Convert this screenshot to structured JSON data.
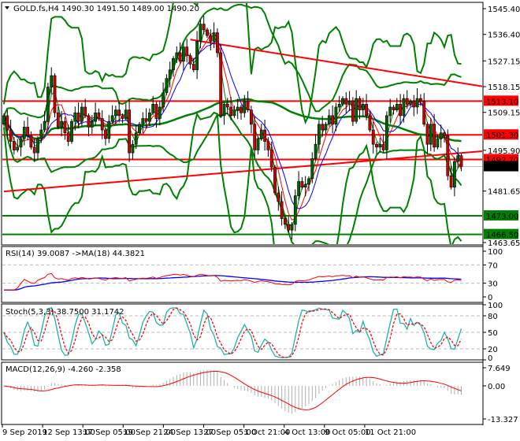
{
  "chart_data": {
    "type": "candlestick",
    "header": {
      "symbol": "GOLD.fs,H4",
      "open": "1490.30",
      "high": "1491.50",
      "low": "1489.00",
      "close": "1490.20"
    },
    "closes": [
      1508,
      1503,
      1499,
      1496,
      1497,
      1500,
      1504,
      1501,
      1497,
      1495,
      1500,
      1503,
      1506,
      1518,
      1522,
      1509,
      1504,
      1506,
      1502,
      1499,
      1506,
      1509,
      1506,
      1511,
      1508,
      1504,
      1506,
      1509,
      1507,
      1503,
      1500,
      1506,
      1508,
      1510,
      1508,
      1507,
      1510,
      1495,
      1498,
      1502,
      1505,
      1507,
      1506,
      1509,
      1512,
      1507,
      1511,
      1516,
      1521,
      1524,
      1528,
      1530,
      1527,
      1532,
      1529,
      1526,
      1524,
      1534,
      1540,
      1538,
      1536,
      1534,
      1537,
      1530,
      1508,
      1512,
      1511,
      1508,
      1510,
      1511,
      1509,
      1513,
      1510,
      1505,
      1496,
      1500,
      1503,
      1499,
      1496,
      1490,
      1481,
      1478,
      1472,
      1470,
      1468,
      1470,
      1480,
      1485,
      1483,
      1484,
      1486,
      1493,
      1498,
      1505,
      1503,
      1505,
      1508,
      1505,
      1511,
      1512,
      1514,
      1512,
      1513,
      1506,
      1514,
      1510,
      1512,
      1508,
      1503,
      1498,
      1497,
      1498,
      1496,
      1508,
      1511,
      1510,
      1512,
      1508,
      1514,
      1512,
      1513,
      1511,
      1514,
      1513,
      1505,
      1498,
      1505,
      1497,
      1500,
      1502,
      1501,
      1487,
      1483,
      1492,
      1494,
      1490.2
    ],
    "price_axis": {
      "ticks": [
        "1545.40",
        "1536.40",
        "1527.15",
        "1518.15",
        "1509.15",
        "1495.90",
        "1481.65",
        "1463.65"
      ],
      "range": [
        1463.65,
        1545.4
      ]
    },
    "levels": [
      {
        "price": 1513.1,
        "label": "1513.10",
        "color": "#ff0000"
      },
      {
        "price": 1501.3,
        "label": "1501.30",
        "color": "#ff0000"
      },
      {
        "price": 1492.7,
        "label": "1492.70",
        "color": "#ff0000"
      },
      {
        "price": 1473.0,
        "label": "1473.00",
        "color": "#008000"
      },
      {
        "price": 1466.5,
        "label": "1466.50",
        "color": "#008000"
      }
    ],
    "current_price": {
      "price": 1490.2,
      "label": "1490.20"
    },
    "trend_lines": [
      {
        "from_candle": 55,
        "from_price": 1534.6,
        "to_price": 1518.2,
        "color": "#ff0000"
      },
      {
        "from_candle": 0,
        "from_price": 1481.5,
        "to_price": 1495.6,
        "color": "#ff0000"
      }
    ],
    "time_axis": [
      "9 Sep 2019",
      "12 Sep 13:00",
      "17 Sep 05:00",
      "19 Sep 21:00",
      "24 Sep 13:00",
      "27 Sep 05:00",
      "1 Oct 21:00",
      "4 Oct 13:00",
      "9 Oct 05:00",
      "11 Oct 21:00"
    ],
    "rsi": {
      "label": "RSI(14) 39.0087  ->MA(18) 44.3821",
      "ticks": [
        "100",
        "70",
        "30",
        "0"
      ]
    },
    "stoch": {
      "label": "Stoch(5,3,3) 38.7500 31.1742",
      "ticks": [
        "100",
        "80",
        "50",
        "20",
        "0"
      ]
    },
    "macd": {
      "label": "MACD(12,26,9) -4.260 -2.358",
      "ticks": [
        "7.649",
        "0.00",
        "-13.327"
      ],
      "range": [
        -13.327,
        7.649
      ]
    },
    "colors": {
      "bull": "#006400",
      "bear": "#d00000",
      "band": "#008000",
      "ma_fast": "#0000ff",
      "ma_mid": "#ff0000",
      "stoch_main": "#20b2aa",
      "signal": "#ff0000",
      "hist": "#b0b0b0"
    }
  }
}
